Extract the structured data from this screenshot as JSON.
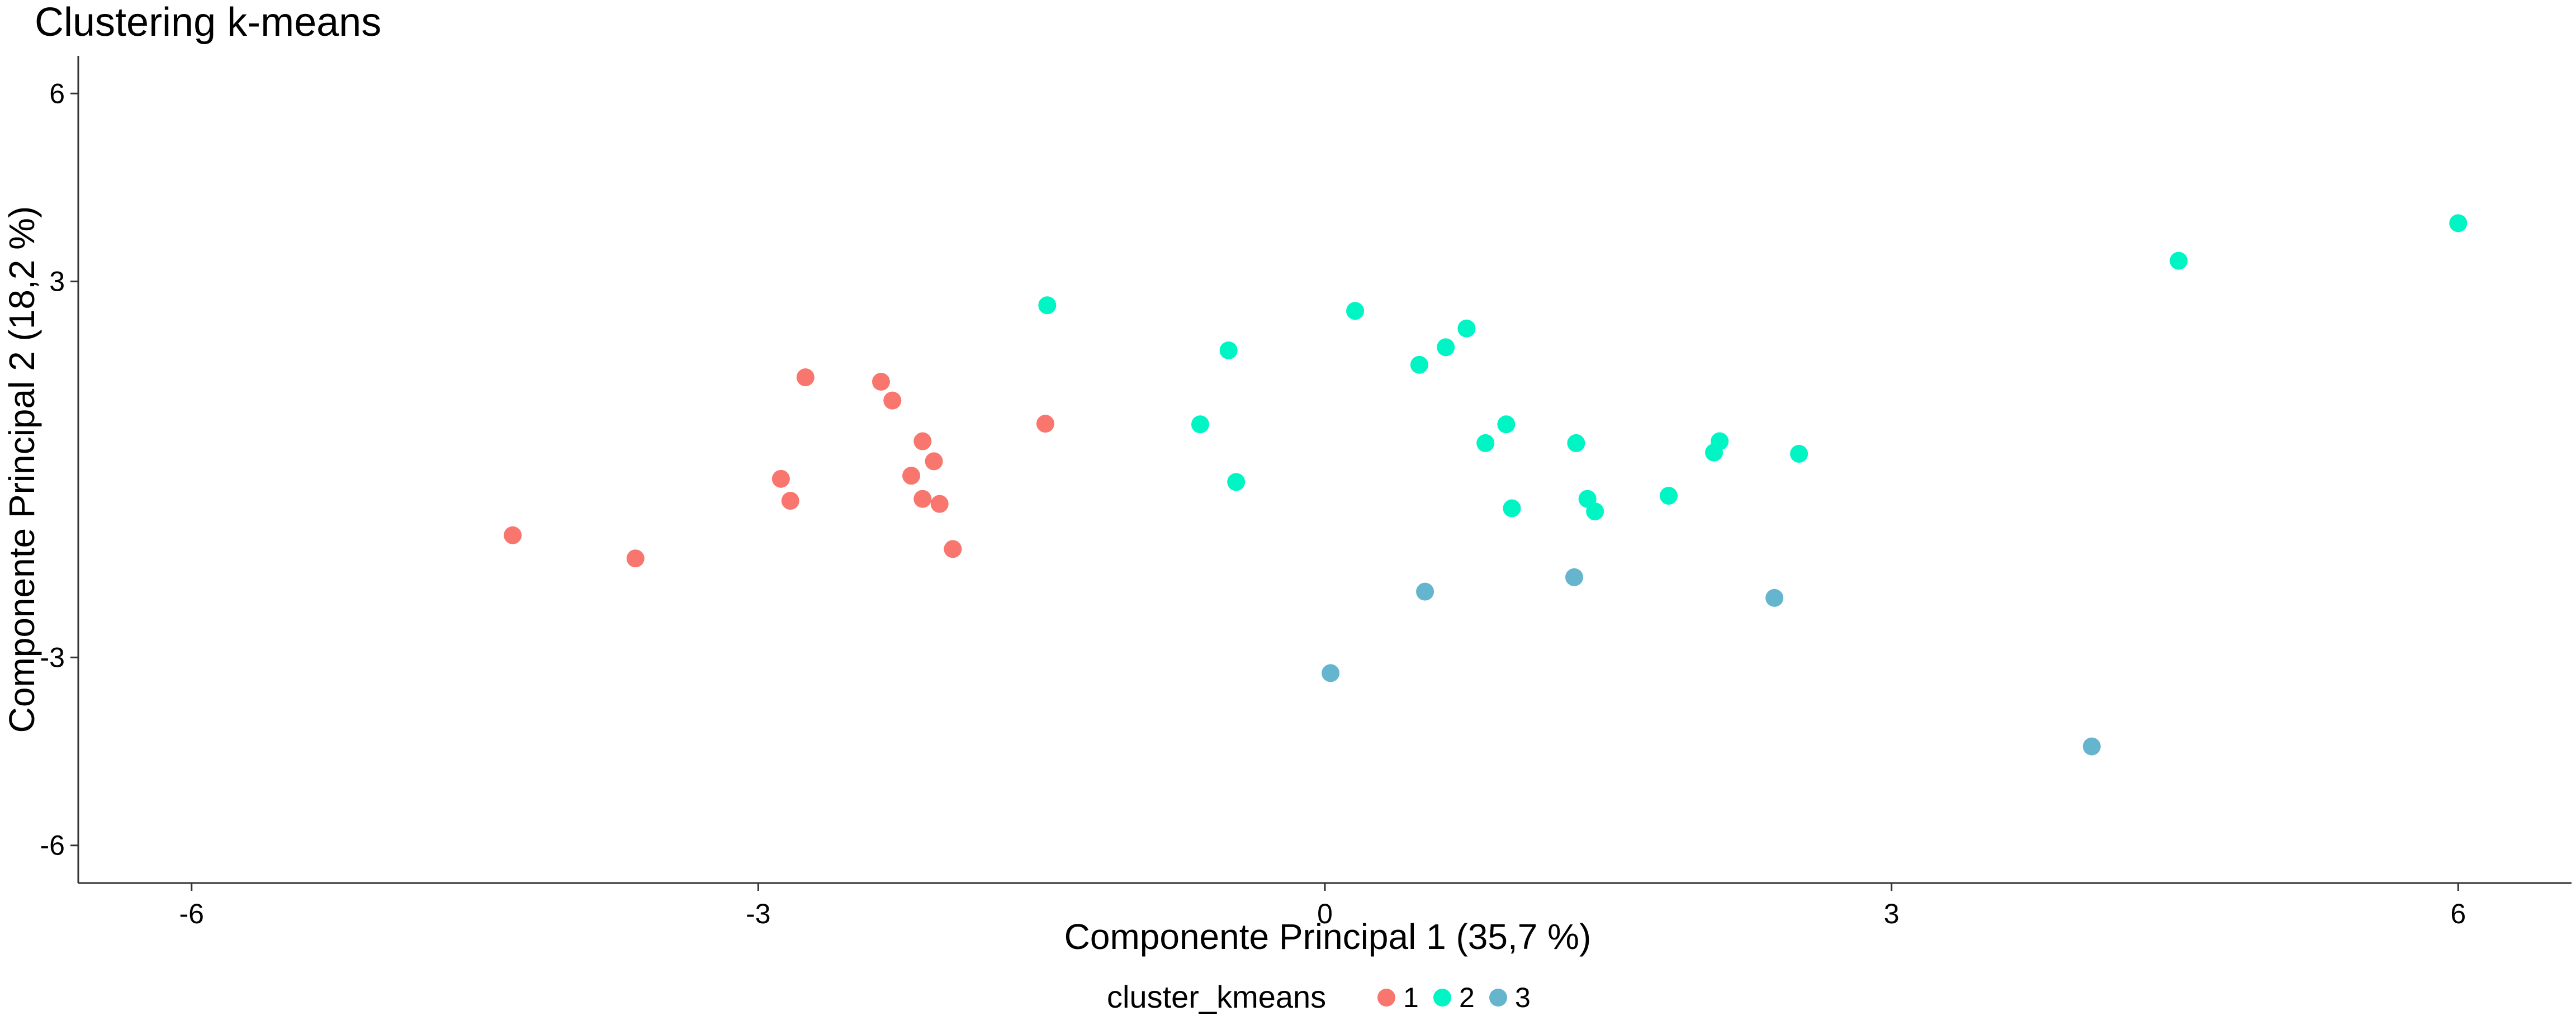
{
  "chart_data": {
    "type": "scatter",
    "title": "Clustering k-means",
    "xlabel": "Componente Principal 1 (35,7 %)",
    "ylabel": "Componente Principal 2 (18,2 %)",
    "xlim": [
      -6.6,
      6.6
    ],
    "ylim": [
      -6.6,
      6.6
    ],
    "xticks": [
      -6,
      -3,
      0,
      3,
      6
    ],
    "yticks": [
      -6,
      -3,
      3,
      6
    ],
    "xtick_labels": [
      "-6",
      "-3",
      "0",
      "3",
      "6"
    ],
    "ytick_labels": [
      "-6",
      "-3",
      "3",
      "6"
    ],
    "grid": false,
    "legend": {
      "title": "cluster_kmeans",
      "position": "bottom"
    },
    "series": [
      {
        "name": "1",
        "color": "#F8766D",
        "points": [
          [
            -4.3,
            -1.05
          ],
          [
            -3.65,
            -1.42
          ],
          [
            -2.88,
            -0.15
          ],
          [
            -2.83,
            -0.5
          ],
          [
            -2.75,
            1.47
          ],
          [
            -2.35,
            1.4
          ],
          [
            -2.29,
            1.1
          ],
          [
            -2.19,
            -0.1
          ],
          [
            -2.13,
            0.45
          ],
          [
            -2.13,
            -0.47
          ],
          [
            -2.07,
            0.13
          ],
          [
            -2.04,
            -0.55
          ],
          [
            -1.97,
            -1.27
          ],
          [
            -1.48,
            0.73
          ]
        ]
      },
      {
        "name": "2",
        "color": "#00F5C4",
        "points": [
          [
            -1.47,
            2.62
          ],
          [
            -0.66,
            0.72
          ],
          [
            -0.51,
            1.9
          ],
          [
            -0.47,
            -0.2
          ],
          [
            0.16,
            2.53
          ],
          [
            0.5,
            1.67
          ],
          [
            0.64,
            1.95
          ],
          [
            0.75,
            2.25
          ],
          [
            0.85,
            0.42
          ],
          [
            0.96,
            0.72
          ],
          [
            0.99,
            -0.62
          ],
          [
            1.33,
            0.42
          ],
          [
            1.39,
            -0.47
          ],
          [
            1.43,
            -0.67
          ],
          [
            1.82,
            -0.42
          ],
          [
            2.06,
            0.27
          ],
          [
            2.09,
            0.45
          ],
          [
            2.51,
            0.25
          ],
          [
            4.52,
            3.33
          ],
          [
            6.0,
            3.93
          ]
        ]
      },
      {
        "name": "3",
        "color": "#64B5CD",
        "points": [
          [
            0.03,
            -3.25
          ],
          [
            0.53,
            -1.95
          ],
          [
            1.32,
            -1.72
          ],
          [
            2.38,
            -2.05
          ],
          [
            4.06,
            -4.42
          ]
        ]
      }
    ]
  }
}
